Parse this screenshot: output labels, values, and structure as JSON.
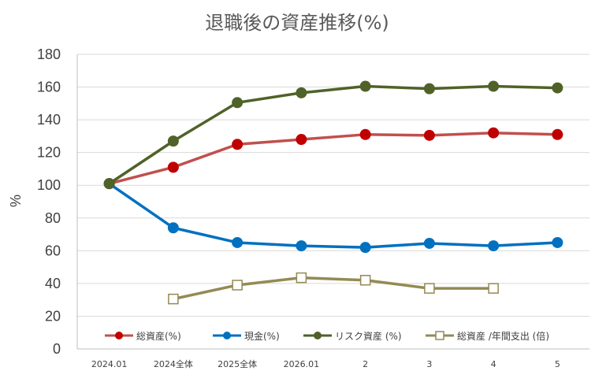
{
  "chart_data": {
    "type": "line",
    "title": "退職後の資産推移(%)",
    "xlabel": "",
    "ylabel": "%",
    "ylim": [
      0,
      180
    ],
    "yticks": [
      0,
      20,
      40,
      60,
      80,
      100,
      120,
      140,
      160,
      180
    ],
    "grid": "horizontal",
    "legend_position": "bottom-inside",
    "categories": [
      "2024.01",
      "2024全体",
      "2025全体",
      "2026.01",
      "2",
      "3",
      "4",
      "5"
    ],
    "series": [
      {
        "name": "総資産(%)",
        "color": "#C0504D",
        "marker_color": "#C00000",
        "marker": "filled-circle",
        "values": [
          101,
          111,
          125,
          128,
          131,
          130.5,
          132,
          131
        ]
      },
      {
        "name": "現金(%)",
        "color": "#0070C0",
        "marker_color": "#0070C0",
        "marker": "filled-circle",
        "values": [
          101,
          74,
          65,
          63,
          62,
          64.5,
          63,
          65
        ]
      },
      {
        "name": "リスク資産 (%)",
        "color": "#4F6228",
        "marker_color": "#4F6228",
        "marker": "filled-circle",
        "values": [
          101,
          127,
          150.5,
          156.5,
          160.5,
          159,
          160.5,
          159.5
        ]
      },
      {
        "name": "総資産 /年間支出 (倍)",
        "color": "#948A54",
        "marker_color": "#948A54",
        "marker": "hollow-square",
        "values": [
          null,
          30.5,
          39,
          43.5,
          42,
          37,
          37,
          null
        ]
      }
    ]
  }
}
